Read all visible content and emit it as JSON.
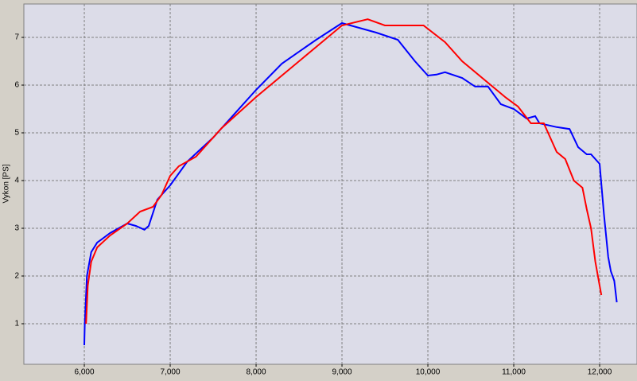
{
  "chart_data": {
    "type": "line",
    "y_label": "Vykon [PS]",
    "series": [
      {
        "color": "#0000ff",
        "x": [
          6000,
          6005,
          6030,
          6080,
          6150,
          6300,
          6500,
          6600,
          6700,
          6750,
          6850,
          7000,
          7200,
          7500,
          8000,
          8300,
          8700,
          9000,
          9100,
          9400,
          9650,
          9850,
          10000,
          10100,
          10200,
          10400,
          10550,
          10700,
          10850,
          11000,
          11150,
          11250,
          11300,
          11500,
          11650,
          11750,
          11850,
          11900,
          12000,
          12050,
          12100,
          12130,
          12170,
          12200
        ],
        "values": [
          0.55,
          1.0,
          2.0,
          2.5,
          2.7,
          2.9,
          3.1,
          3.05,
          2.97,
          3.05,
          3.6,
          3.9,
          4.4,
          4.9,
          5.9,
          6.45,
          6.95,
          7.3,
          7.25,
          7.1,
          6.95,
          6.5,
          6.2,
          6.22,
          6.27,
          6.15,
          5.97,
          5.97,
          5.6,
          5.5,
          5.3,
          5.35,
          5.2,
          5.12,
          5.08,
          4.7,
          4.55,
          4.55,
          4.35,
          3.3,
          2.4,
          2.1,
          1.9,
          1.45
        ]
      },
      {
        "color": "#ff0000",
        "x": [
          6020,
          6040,
          6080,
          6150,
          6300,
          6500,
          6650,
          6800,
          6900,
          7000,
          7100,
          7300,
          7600,
          8000,
          8300,
          8700,
          9000,
          9300,
          9500,
          9800,
          9950,
          10200,
          10400,
          10700,
          10900,
          11050,
          11200,
          11350,
          11500,
          11600,
          11700,
          11800,
          11850,
          11900,
          11950,
          12000,
          12020
        ],
        "values": [
          1.0,
          1.8,
          2.3,
          2.6,
          2.85,
          3.1,
          3.35,
          3.45,
          3.7,
          4.1,
          4.3,
          4.5,
          5.1,
          5.75,
          6.2,
          6.8,
          7.25,
          7.38,
          7.25,
          7.25,
          7.25,
          6.9,
          6.5,
          6.05,
          5.75,
          5.55,
          5.2,
          5.2,
          4.6,
          4.45,
          4.0,
          3.85,
          3.4,
          3.0,
          2.3,
          1.8,
          1.6
        ]
      }
    ],
    "xlim": [
      5296,
      12435
    ],
    "ylim": [
      0.15,
      7.7
    ],
    "xticks": [
      {
        "value": 6000,
        "label": "6,000"
      },
      {
        "value": 7000,
        "label": "7,000"
      },
      {
        "value": 8000,
        "label": "8,000"
      },
      {
        "value": 9000,
        "label": "9,000"
      },
      {
        "value": 10000,
        "label": "10,000"
      },
      {
        "value": 11000,
        "label": "11,000"
      },
      {
        "value": 12000,
        "label": "12,000"
      }
    ],
    "yticks": [
      1,
      2,
      3,
      4,
      5,
      6,
      7
    ],
    "grid": true
  }
}
